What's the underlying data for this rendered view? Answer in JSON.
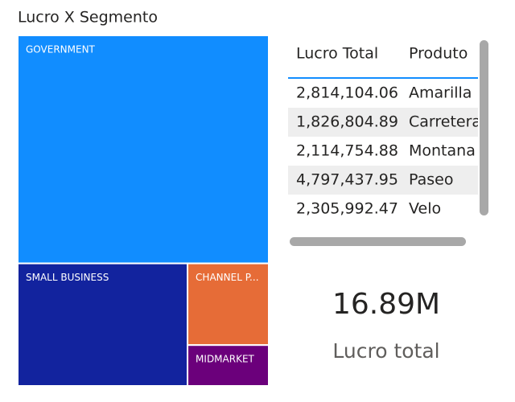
{
  "chart_data": {
    "type": "treemap",
    "title": "Lucro X Segmento",
    "categories": [
      "GOVERNMENT",
      "SMALL BUSINESS",
      "CHANNEL P...",
      "MIDMARKET"
    ],
    "values": [
      11390000,
      4140000,
      1320000,
      660000
    ],
    "colors": [
      "#118DFF",
      "#12239E",
      "#E66C37",
      "#6B007B"
    ]
  },
  "table": {
    "headers": [
      "Lucro Total",
      "Produto"
    ],
    "rows": [
      [
        "2,814,104.06",
        "Amarilla"
      ],
      [
        "1,826,804.89",
        "Carretera"
      ],
      [
        "2,114,754.88",
        "Montana"
      ],
      [
        "4,797,437.95",
        "Paseo"
      ],
      [
        "2,305,992.47",
        "Velo"
      ]
    ]
  },
  "card": {
    "value": "16.89M",
    "label": "Lucro total"
  }
}
